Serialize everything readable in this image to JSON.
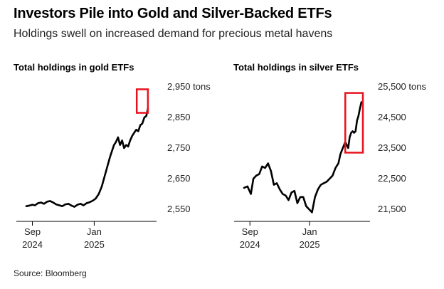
{
  "header": {
    "title": "Investors Pile into Gold and Silver-Backed ETFs",
    "subtitle": "Holdings swell on increased demand for precious metal havens"
  },
  "footer": {
    "source": "Source: Bloomberg"
  },
  "colors": {
    "line": "#000000",
    "highlight": "#e8121c",
    "axis": "#000000",
    "text": "#222222"
  },
  "chart_data": [
    {
      "type": "line",
      "title": "Total holdings in gold ETFs",
      "unit": "tons",
      "y_tick_labels": [
        "2,950 tons",
        "2,850",
        "2,750",
        "2,650",
        "2,550"
      ],
      "y_ticks": [
        2950,
        2850,
        2750,
        2650,
        2550
      ],
      "ylim": [
        2550,
        2950
      ],
      "x_tick_labels": [
        [
          "Sep",
          "2024"
        ],
        [
          "Jan",
          "2025"
        ]
      ],
      "x_ticks": [
        "2024-09-01",
        "2025-01-01"
      ],
      "xlim": [
        "2024-08-20",
        "2025-04-20"
      ],
      "grid": false,
      "highlight_box": {
        "x": [
          "2025-03-26",
          "2025-04-17"
        ],
        "y": [
          2865,
          2942
        ]
      },
      "series": [
        {
          "x": [
            "2024-08-20",
            "2024-08-26",
            "2024-09-01",
            "2024-09-06",
            "2024-09-12",
            "2024-09-18",
            "2024-09-24",
            "2024-09-30",
            "2024-10-06",
            "2024-10-12",
            "2024-10-18",
            "2024-10-24",
            "2024-10-30",
            "2024-11-05",
            "2024-11-11",
            "2024-11-17",
            "2024-11-23",
            "2024-11-29",
            "2024-12-05",
            "2024-12-11",
            "2024-12-17",
            "2024-12-23",
            "2024-12-29",
            "2025-01-04",
            "2025-01-10",
            "2025-01-16",
            "2025-01-22",
            "2025-01-27",
            "2025-02-01",
            "2025-02-05",
            "2025-02-09",
            "2025-02-13",
            "2025-02-17",
            "2025-02-21",
            "2025-02-25",
            "2025-03-01",
            "2025-03-05",
            "2025-03-09",
            "2025-03-13",
            "2025-03-17",
            "2025-03-21",
            "2025-03-25",
            "2025-03-29",
            "2025-04-02",
            "2025-04-06",
            "2025-04-10",
            "2025-04-14",
            "2025-04-17"
          ],
          "values": [
            2560,
            2562,
            2565,
            2563,
            2570,
            2572,
            2568,
            2575,
            2577,
            2572,
            2566,
            2563,
            2560,
            2566,
            2568,
            2562,
            2558,
            2565,
            2568,
            2563,
            2570,
            2573,
            2578,
            2585,
            2600,
            2625,
            2660,
            2690,
            2720,
            2740,
            2760,
            2770,
            2785,
            2760,
            2775,
            2750,
            2760,
            2755,
            2775,
            2790,
            2800,
            2810,
            2805,
            2825,
            2830,
            2850,
            2855,
            2880
          ]
        }
      ]
    },
    {
      "type": "line",
      "title": "Total holdings in silver ETFs",
      "unit": "tons",
      "y_tick_labels": [
        "25,500 tons",
        "24,500",
        "23,500",
        "22,500",
        "21,500"
      ],
      "y_ticks": [
        25500,
        24500,
        23500,
        22500,
        21500
      ],
      "ylim": [
        21500,
        25500
      ],
      "x_tick_labels": [
        [
          "Sep",
          "2024"
        ],
        [
          "Jan",
          "2025"
        ]
      ],
      "x_ticks": [
        "2024-09-01",
        "2025-01-01"
      ],
      "xlim": [
        "2024-08-20",
        "2025-04-20"
      ],
      "grid": false,
      "highlight_box": {
        "x": [
          "2025-03-15",
          "2025-04-20"
        ],
        "y": [
          23350,
          25300
        ]
      },
      "series": [
        {
          "x": [
            "2024-08-20",
            "2024-08-27",
            "2024-09-03",
            "2024-09-08",
            "2024-09-14",
            "2024-09-20",
            "2024-09-26",
            "2024-10-02",
            "2024-10-08",
            "2024-10-14",
            "2024-10-20",
            "2024-10-26",
            "2024-11-01",
            "2024-11-07",
            "2024-11-13",
            "2024-11-19",
            "2024-11-25",
            "2024-12-01",
            "2024-12-07",
            "2024-12-13",
            "2024-12-19",
            "2024-12-25",
            "2024-12-31",
            "2025-01-06",
            "2025-01-12",
            "2025-01-18",
            "2025-01-24",
            "2025-01-30",
            "2025-02-05",
            "2025-02-11",
            "2025-02-17",
            "2025-02-23",
            "2025-03-01",
            "2025-03-05",
            "2025-03-10",
            "2025-03-15",
            "2025-03-18",
            "2025-03-21",
            "2025-03-24",
            "2025-03-27",
            "2025-03-30",
            "2025-04-02",
            "2025-04-05",
            "2025-04-08",
            "2025-04-11",
            "2025-04-14",
            "2025-04-17"
          ],
          "values": [
            22200,
            22250,
            22000,
            22500,
            22600,
            22650,
            22900,
            22850,
            23000,
            22750,
            22300,
            22350,
            22150,
            22000,
            21950,
            21800,
            22050,
            22100,
            21700,
            21900,
            21900,
            21600,
            21500,
            21400,
            21900,
            22150,
            22300,
            22350,
            22400,
            22500,
            22600,
            22850,
            23000,
            23300,
            23500,
            23700,
            23600,
            23500,
            23850,
            24000,
            24050,
            24000,
            24050,
            24400,
            24550,
            24800,
            25000
          ]
        }
      ]
    }
  ]
}
